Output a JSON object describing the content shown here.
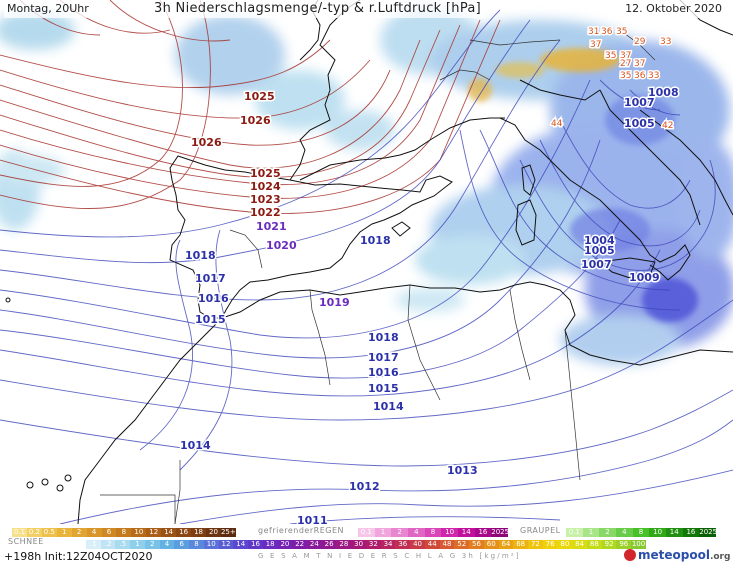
{
  "header": {
    "run_time": "Montag, 20Uhr",
    "title": "3h Niederschlagsmenge/-typ & r.Luftdruck [hPa]",
    "date": "12. Oktober 2020"
  },
  "isobar_labels": [
    {
      "text": "1026",
      "kind": "hi"
    },
    {
      "text": "1026",
      "kind": "hi"
    },
    {
      "text": "1025",
      "kind": "hi"
    },
    {
      "text": "1025",
      "kind": "hi"
    },
    {
      "text": "1024",
      "kind": "hi"
    },
    {
      "text": "1023",
      "kind": "hi"
    },
    {
      "text": "1022",
      "kind": "hi"
    },
    {
      "text": "1021",
      "kind": "cen"
    },
    {
      "text": "1020",
      "kind": "cen"
    },
    {
      "text": "1019",
      "kind": "cen"
    },
    {
      "text": "1018",
      "kind": "lo"
    },
    {
      "text": "1018",
      "kind": "lo"
    },
    {
      "text": "1018",
      "kind": "lo"
    },
    {
      "text": "1017",
      "kind": "lo"
    },
    {
      "text": "1017",
      "kind": "lo"
    },
    {
      "text": "1016",
      "kind": "lo"
    },
    {
      "text": "1016",
      "kind": "lo"
    },
    {
      "text": "1015",
      "kind": "lo"
    },
    {
      "text": "1015",
      "kind": "lo"
    },
    {
      "text": "1014",
      "kind": "lo"
    },
    {
      "text": "1014",
      "kind": "lo"
    },
    {
      "text": "1013",
      "kind": "lo"
    },
    {
      "text": "1012",
      "kind": "lo"
    },
    {
      "text": "1011",
      "kind": "lo"
    },
    {
      "text": "1009",
      "kind": "lo"
    },
    {
      "text": "1007",
      "kind": "lo"
    },
    {
      "text": "1005",
      "kind": "lo"
    },
    {
      "text": "1004",
      "kind": "lo"
    },
    {
      "text": "1008",
      "kind": "lo"
    },
    {
      "text": "1007",
      "kind": "lo"
    },
    {
      "text": "1005",
      "kind": "lo"
    }
  ],
  "alpine_labels": [
    "31",
    "36",
    "35",
    "37",
    "29",
    "35",
    "37",
    "27",
    "37",
    "33",
    "44",
    "35",
    "36",
    "33",
    "42"
  ],
  "colors": {
    "sea": "#ffffff",
    "coast": "#111111",
    "isobar_high": "#a5302a",
    "isobar_low": "#3c44b8",
    "precip_light": "#9fd0e8",
    "precip_mid": "#7c95e8",
    "precip_heavy": "#4c50d8",
    "snow_accent": "#e8b43a"
  },
  "legend": {
    "schnee_title": "SCHNEE",
    "schnee_values": [
      "0.1",
      "0.2",
      "0.5",
      "1",
      "2",
      "4",
      "6",
      "8",
      "10",
      "12",
      "14",
      "16",
      "18",
      "20",
      "25+"
    ],
    "regen_title": "gefrierenderREGEN",
    "regen_values": [
      "0.1",
      "1",
      "2",
      "4",
      "8",
      "10",
      "14",
      "16",
      "2025+"
    ],
    "graupel_title": "GRAUPEL",
    "graupel_values": [
      "0.1",
      "1",
      "2",
      "4",
      "8",
      "10",
      "14",
      "16",
      "2025+"
    ],
    "gesamt_values": [
      ".1",
      ".2",
      ".5",
      "1",
      "2",
      "4",
      "6",
      "8",
      "10",
      "12",
      "14",
      "16",
      "18",
      "20",
      "22",
      "24",
      "26",
      "28",
      "30",
      "32",
      "34",
      "36",
      "40",
      "44",
      "48",
      "52",
      "56",
      "60",
      "64",
      "68",
      "72",
      "76",
      "80",
      "84",
      "88",
      "92",
      "96",
      "100"
    ],
    "gesamt_title": "G E S A M T N I E D E R S C H L A G  3h  [kg/m²]"
  },
  "footer": {
    "run_info": "+198h Init:12Z04OCT2020",
    "logo_text": "meteopool",
    "logo_tld": ".org"
  }
}
